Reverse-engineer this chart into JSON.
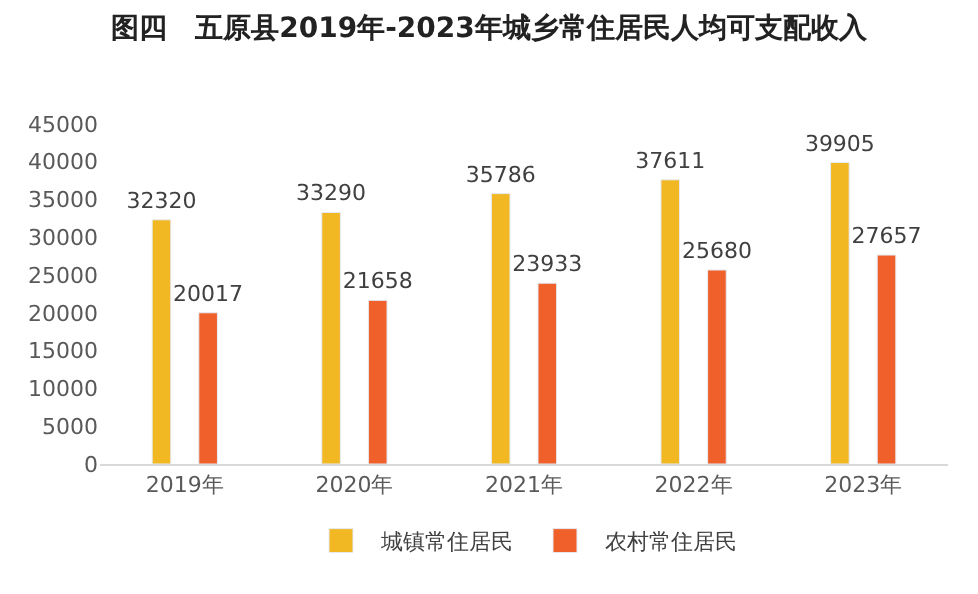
{
  "chart_data": {
    "type": "bar",
    "title": "图四　五原县2019年-2023年城乡常住居民人均可支配收入",
    "categories": [
      "2019年",
      "2020年",
      "2021年",
      "2022年",
      "2023年"
    ],
    "series": [
      {
        "name": "城镇常住居民",
        "color": "#f2b824",
        "values": [
          32320,
          33290,
          35786,
          37611,
          39905
        ]
      },
      {
        "name": "农村常住居民",
        "color": "#f0602a",
        "values": [
          20017,
          21658,
          23933,
          25680,
          27657
        ]
      }
    ],
    "ylim": [
      0,
      45000
    ],
    "yticks": [
      0,
      5000,
      10000,
      15000,
      20000,
      25000,
      30000,
      35000,
      40000,
      45000
    ],
    "data_labels": true,
    "grid": false,
    "legend": "bottom"
  }
}
